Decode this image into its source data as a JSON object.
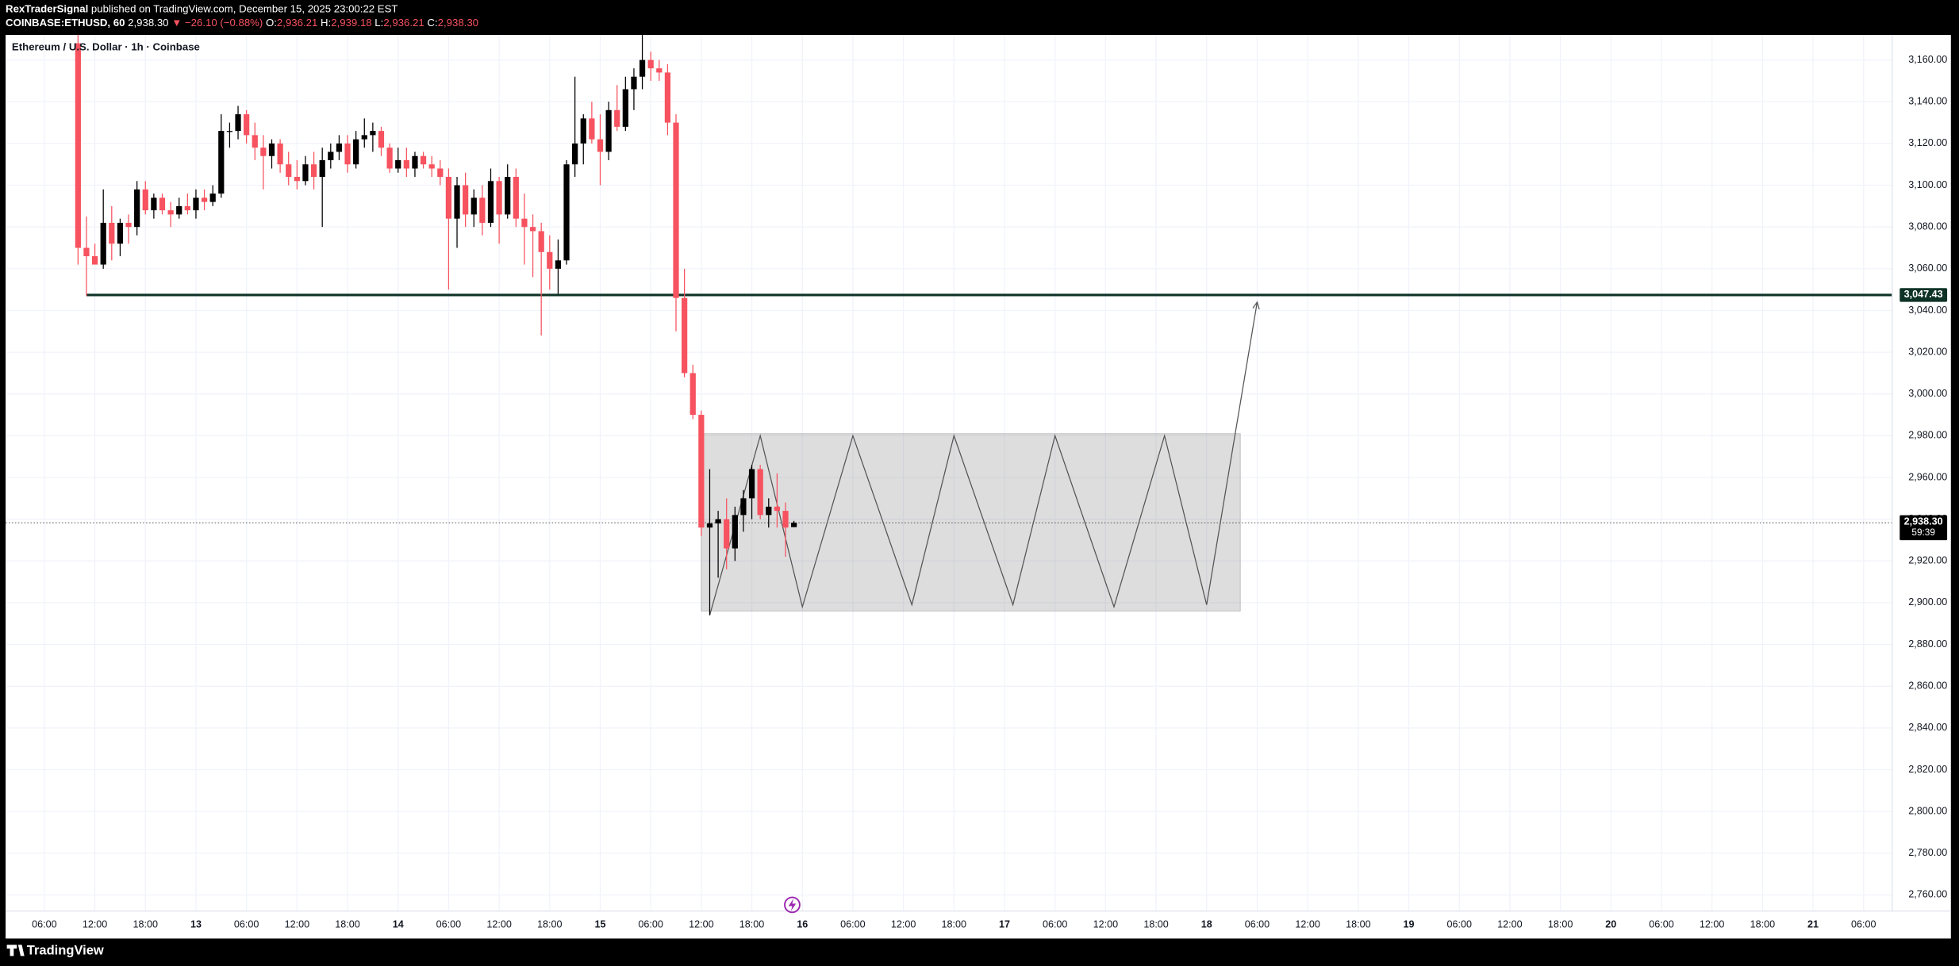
{
  "chart_data": {
    "type": "candlestick",
    "header": {
      "author": "RexTraderSignal",
      "published": "published on TradingView.com, December 15, 2025 23:00:22 EST",
      "symbol": "COINBASE:ETHUSD, 60",
      "price": "2,938.30",
      "change": "▼ −26.10 (−0.88%)",
      "ohlc": [
        {
          "label": "O:",
          "value": "2,936.21"
        },
        {
          "label": "H:",
          "value": "2,939.18"
        },
        {
          "label": "L:",
          "value": "2,936.21"
        },
        {
          "label": "C:",
          "value": "2,938.30"
        }
      ]
    },
    "title": "Ethereum / U.S. Dollar · 1h · Coinbase",
    "brand": "TradingView",
    "up_color": "#000000",
    "down_color": "#f7525f",
    "grid": true,
    "x": [
      "2025-12-12T10:00",
      "2025-12-12T11:00",
      "2025-12-12T12:00",
      "2025-12-12T13:00",
      "2025-12-12T14:00",
      "2025-12-12T15:00",
      "2025-12-12T16:00",
      "2025-12-12T17:00",
      "2025-12-12T18:00",
      "2025-12-12T19:00",
      "2025-12-12T20:00",
      "2025-12-12T21:00",
      "2025-12-12T22:00",
      "2025-12-12T23:00",
      "2025-12-13T00:00",
      "2025-12-13T01:00",
      "2025-12-13T02:00",
      "2025-12-13T03:00",
      "2025-12-13T04:00",
      "2025-12-13T05:00",
      "2025-12-13T06:00",
      "2025-12-13T07:00",
      "2025-12-13T08:00",
      "2025-12-13T09:00",
      "2025-12-13T10:00",
      "2025-12-13T11:00",
      "2025-12-13T12:00",
      "2025-12-13T13:00",
      "2025-12-13T14:00",
      "2025-12-13T15:00",
      "2025-12-13T16:00",
      "2025-12-13T17:00",
      "2025-12-13T18:00",
      "2025-12-13T19:00",
      "2025-12-13T20:00",
      "2025-12-13T21:00",
      "2025-12-13T22:00",
      "2025-12-13T23:00",
      "2025-12-14T00:00",
      "2025-12-14T01:00",
      "2025-12-14T02:00",
      "2025-12-14T03:00",
      "2025-12-14T04:00",
      "2025-12-14T05:00",
      "2025-12-14T06:00",
      "2025-12-14T07:00",
      "2025-12-14T08:00",
      "2025-12-14T09:00",
      "2025-12-14T10:00",
      "2025-12-14T11:00",
      "2025-12-14T12:00",
      "2025-12-14T13:00",
      "2025-12-14T14:00",
      "2025-12-14T15:00",
      "2025-12-14T16:00",
      "2025-12-14T17:00",
      "2025-12-14T18:00",
      "2025-12-14T19:00",
      "2025-12-14T20:00",
      "2025-12-14T21:00",
      "2025-12-14T22:00",
      "2025-12-14T23:00",
      "2025-12-15T00:00",
      "2025-12-15T01:00",
      "2025-12-15T02:00",
      "2025-12-15T03:00",
      "2025-12-15T04:00",
      "2025-12-15T05:00",
      "2025-12-15T06:00",
      "2025-12-15T07:00",
      "2025-12-15T08:00",
      "2025-12-15T09:00",
      "2025-12-15T10:00",
      "2025-12-15T11:00",
      "2025-12-15T12:00",
      "2025-12-15T13:00",
      "2025-12-15T14:00",
      "2025-12-15T15:00",
      "2025-12-15T16:00",
      "2025-12-15T17:00",
      "2025-12-15T18:00",
      "2025-12-15T19:00",
      "2025-12-15T20:00",
      "2025-12-15T21:00",
      "2025-12-15T22:00",
      "2025-12-15T23:00"
    ],
    "open": [
      3168,
      3070,
      3066,
      3062,
      3082,
      3072,
      3082,
      3080,
      3098,
      3088,
      3094,
      3088,
      3086,
      3090,
      3088,
      3094,
      3092,
      3096,
      3126,
      3126,
      3134,
      3124,
      3118,
      3114,
      3120,
      3110,
      3104,
      3102,
      3110,
      3104,
      3112,
      3116,
      3120,
      3110,
      3122,
      3124,
      3126,
      3118,
      3108,
      3112,
      3108,
      3114,
      3110,
      3108,
      3104,
      3084,
      3100,
      3086,
      3094,
      3082,
      3102,
      3086,
      3104,
      3084,
      3080,
      3078,
      3068,
      3060,
      3064,
      3110,
      3120,
      3132,
      3122,
      3116,
      3136,
      3128,
      3146,
      3152,
      3160,
      3156,
      3154,
      3130,
      3046,
      3010,
      2990,
      2936,
      2938,
      2940,
      2926,
      2942,
      2950,
      2964,
      2942,
      2946,
      2944,
      2936.21
    ],
    "high": [
      3172,
      3085,
      3072,
      3098,
      3090,
      3084,
      3086,
      3102,
      3102,
      3096,
      3096,
      3092,
      3094,
      3096,
      3098,
      3098,
      3100,
      3134,
      3130,
      3138,
      3136,
      3130,
      3124,
      3122,
      3122,
      3116,
      3112,
      3114,
      3116,
      3118,
      3120,
      3124,
      3124,
      3126,
      3132,
      3130,
      3128,
      3120,
      3118,
      3118,
      3116,
      3116,
      3114,
      3112,
      3108,
      3104,
      3106,
      3098,
      3100,
      3108,
      3104,
      3110,
      3108,
      3096,
      3086,
      3082,
      3076,
      3074,
      3112,
      3152,
      3134,
      3140,
      3134,
      3140,
      3148,
      3152,
      3156,
      3172,
      3164,
      3160,
      3158,
      3134,
      3060,
      3014,
      2992,
      2964,
      2944,
      2950,
      2946,
      2954,
      2966,
      2966,
      2950,
      2962,
      2948,
      2939.18
    ],
    "low": [
      3062,
      3047,
      3062,
      3060,
      3064,
      3066,
      3072,
      3076,
      3086,
      3084,
      3086,
      3080,
      3084,
      3086,
      3084,
      3088,
      3090,
      3094,
      3118,
      3122,
      3120,
      3112,
      3098,
      3108,
      3106,
      3100,
      3098,
      3100,
      3098,
      3080,
      3108,
      3112,
      3106,
      3108,
      3118,
      3116,
      3114,
      3106,
      3106,
      3104,
      3104,
      3108,
      3104,
      3100,
      3050,
      3070,
      3080,
      3080,
      3076,
      3080,
      3072,
      3084,
      3080,
      3062,
      3056,
      3028,
      3050,
      3048,
      3062,
      3104,
      3110,
      3120,
      3100,
      3112,
      3126,
      3126,
      3136,
      3146,
      3150,
      3150,
      3124,
      3030,
      3008,
      2988,
      2932,
      2894,
      2912,
      2916,
      2920,
      2934,
      2940,
      2940,
      2936,
      2936,
      2922,
      2936.21
    ],
    "close": [
      3070,
      3066,
      3062,
      3082,
      3072,
      3082,
      3080,
      3098,
      3088,
      3094,
      3088,
      3086,
      3090,
      3088,
      3094,
      3092,
      3096,
      3126,
      3126,
      3134,
      3124,
      3118,
      3114,
      3120,
      3110,
      3104,
      3102,
      3110,
      3104,
      3112,
      3116,
      3120,
      3110,
      3122,
      3124,
      3126,
      3118,
      3108,
      3112,
      3108,
      3114,
      3110,
      3108,
      3104,
      3084,
      3100,
      3086,
      3094,
      3082,
      3102,
      3086,
      3104,
      3084,
      3080,
      3078,
      3068,
      3060,
      3064,
      3110,
      3120,
      3132,
      3122,
      3116,
      3136,
      3128,
      3146,
      3152,
      3160,
      3156,
      3154,
      3130,
      3046,
      3010,
      2990,
      2936,
      2938,
      2940,
      2926,
      2942,
      2950,
      2964,
      2942,
      2946,
      2944,
      2936,
      2938.3
    ],
    "xlim": [
      "2025-12-12T01:24",
      "2025-12-21T09:24"
    ],
    "ylim": [
      2740.3,
      3172
    ],
    "yticks": [
      {
        "value": 2760,
        "label": "2,760.00"
      },
      {
        "value": 2780,
        "label": "2,780.00"
      },
      {
        "value": 2800,
        "label": "2,800.00"
      },
      {
        "value": 2820,
        "label": "2,820.00"
      },
      {
        "value": 2840,
        "label": "2,840.00"
      },
      {
        "value": 2860,
        "label": "2,860.00"
      },
      {
        "value": 2880,
        "label": "2,880.00"
      },
      {
        "value": 2900,
        "label": "2,900.00"
      },
      {
        "value": 2920,
        "label": "2,920.00"
      },
      {
        "value": 2940,
        "label": "2,940.00"
      },
      {
        "value": 2960,
        "label": "2,960.00"
      },
      {
        "value": 2980,
        "label": "2,980.00"
      },
      {
        "value": 3000,
        "label": "3,000.00"
      },
      {
        "value": 3020,
        "label": "3,020.00"
      },
      {
        "value": 3040,
        "label": "3,040.00"
      },
      {
        "value": 3060,
        "label": "3,060.00"
      },
      {
        "value": 3080,
        "label": "3,080.00"
      },
      {
        "value": 3100,
        "label": "3,100.00"
      },
      {
        "value": 3120,
        "label": "3,120.00"
      },
      {
        "value": 3140,
        "label": "3,140.00"
      },
      {
        "value": 3160,
        "label": "3,160.00"
      }
    ],
    "xticks": [
      {
        "value": "2025-12-12T06:00",
        "label": "06:00"
      },
      {
        "value": "2025-12-12T12:00",
        "label": "12:00"
      },
      {
        "value": "2025-12-12T18:00",
        "label": "18:00"
      },
      {
        "value": "2025-12-13T00:00",
        "label": "13"
      },
      {
        "value": "2025-12-13T06:00",
        "label": "06:00"
      },
      {
        "value": "2025-12-13T12:00",
        "label": "12:00"
      },
      {
        "value": "2025-12-13T18:00",
        "label": "18:00"
      },
      {
        "value": "2025-12-14T00:00",
        "label": "14"
      },
      {
        "value": "2025-12-14T06:00",
        "label": "06:00"
      },
      {
        "value": "2025-12-14T12:00",
        "label": "12:00"
      },
      {
        "value": "2025-12-14T18:00",
        "label": "18:00"
      },
      {
        "value": "2025-12-15T00:00",
        "label": "15"
      },
      {
        "value": "2025-12-15T06:00",
        "label": "06:00"
      },
      {
        "value": "2025-12-15T12:00",
        "label": "12:00"
      },
      {
        "value": "2025-12-15T18:00",
        "label": "18:00"
      },
      {
        "value": "2025-12-16T00:00",
        "label": "16"
      },
      {
        "value": "2025-12-16T06:00",
        "label": "06:00"
      },
      {
        "value": "2025-12-16T12:00",
        "label": "12:00"
      },
      {
        "value": "2025-12-16T18:00",
        "label": "18:00"
      },
      {
        "value": "2025-12-17T00:00",
        "label": "17"
      },
      {
        "value": "2025-12-17T06:00",
        "label": "06:00"
      },
      {
        "value": "2025-12-17T12:00",
        "label": "12:00"
      },
      {
        "value": "2025-12-17T18:00",
        "label": "18:00"
      },
      {
        "value": "2025-12-18T00:00",
        "label": "18"
      },
      {
        "value": "2025-12-18T06:00",
        "label": "06:00"
      },
      {
        "value": "2025-12-18T12:00",
        "label": "12:00"
      },
      {
        "value": "2025-12-18T18:00",
        "label": "18:00"
      },
      {
        "value": "2025-12-19T00:00",
        "label": "19"
      },
      {
        "value": "2025-12-19T06:00",
        "label": "06:00"
      },
      {
        "value": "2025-12-19T12:00",
        "label": "12:00"
      },
      {
        "value": "2025-12-19T18:00",
        "label": "18:00"
      },
      {
        "value": "2025-12-20T00:00",
        "label": "20"
      },
      {
        "value": "2025-12-20T06:00",
        "label": "06:00"
      },
      {
        "value": "2025-12-20T12:00",
        "label": "12:00"
      },
      {
        "value": "2025-12-20T18:00",
        "label": "18:00"
      },
      {
        "value": "2025-12-21T00:00",
        "label": "21"
      },
      {
        "value": "2025-12-21T06:00",
        "label": "06:00"
      }
    ],
    "level": {
      "value": 3047.43,
      "label": "3,047.43",
      "start": "2025-12-12T11:00",
      "color": "#0e3326"
    },
    "last_price": {
      "value": 2938.3,
      "label": "2,938.30",
      "countdown": "59:39"
    },
    "range_box": {
      "x": [
        "2025-12-15T12:00",
        "2025-12-18T04:00"
      ],
      "y": [
        2896,
        2981
      ]
    },
    "projection": {
      "x": [
        "2025-12-15T13:00",
        "2025-12-15T19:00",
        "2025-12-16T00:00",
        "2025-12-16T06:00",
        "2025-12-16T13:00",
        "2025-12-16T18:00",
        "2025-12-17T01:00",
        "2025-12-17T06:00",
        "2025-12-17T13:00",
        "2025-12-17T19:00",
        "2025-12-18T00:00",
        "2025-12-18T06:00"
      ],
      "values": [
        2894,
        2980,
        2898,
        2980,
        2899,
        2980,
        2899,
        2980,
        2898,
        2980,
        2899,
        3044
      ]
    }
  }
}
